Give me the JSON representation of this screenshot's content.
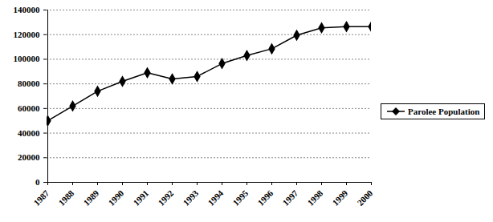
{
  "chart_data": {
    "type": "line",
    "categories": [
      "1987",
      "1988",
      "1989",
      "1990",
      "1991",
      "1992",
      "1993",
      "1994",
      "1995",
      "1996",
      "1997",
      "1998",
      "1999",
      "2000"
    ],
    "series": [
      {
        "name": "Parolee Population",
        "color": "#000000",
        "marker": "diamond",
        "values": [
          50000,
          62000,
          74000,
          82000,
          89000,
          84000,
          86000,
          96500,
          103000,
          108500,
          119500,
          125500,
          126500,
          126500
        ]
      }
    ],
    "ylim": [
      0,
      140000
    ],
    "yticks": [
      0,
      20000,
      40000,
      60000,
      80000,
      100000,
      120000,
      140000
    ],
    "grid": true,
    "legend": "right"
  }
}
